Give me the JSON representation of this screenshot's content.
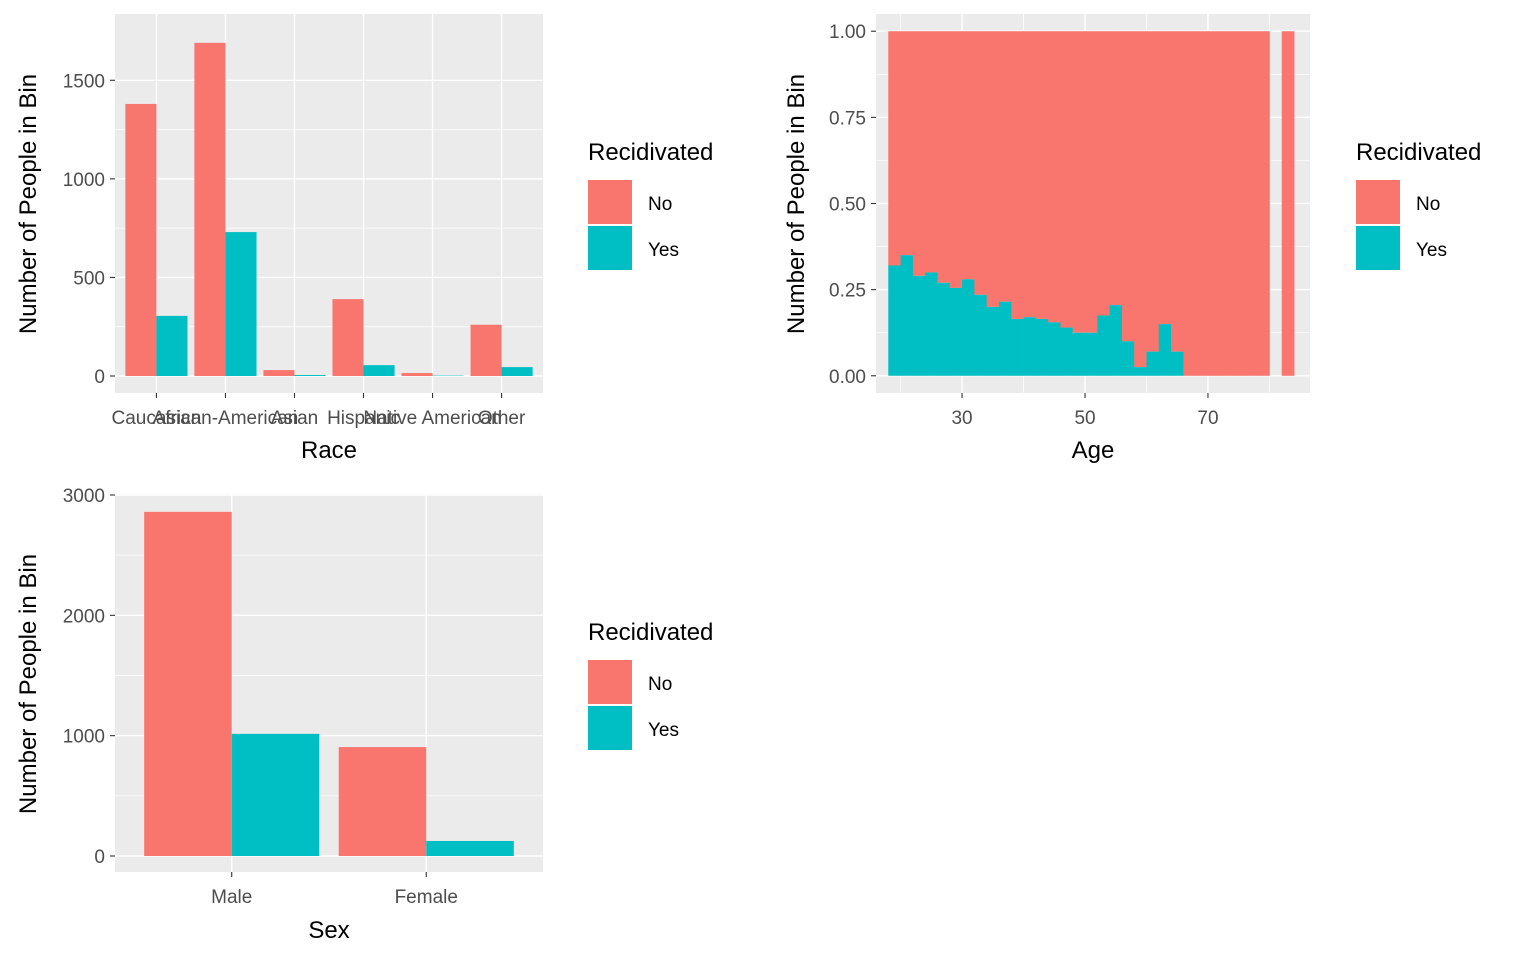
{
  "colors": {
    "no": "#F8766D",
    "yes": "#00BFC4",
    "panel": "#EBEBEB",
    "grid": "#FFFFFF"
  },
  "chart_data": [
    {
      "id": "race",
      "type": "bar",
      "position": "dodge",
      "xlabel": "Race",
      "ylabel": "Number of People in Bin",
      "categories": [
        "Caucasian",
        "African-American",
        "Asian",
        "Hispanic",
        "Native American",
        "Other"
      ],
      "series": [
        {
          "name": "No",
          "values": [
            1380,
            1690,
            30,
            390,
            15,
            260
          ]
        },
        {
          "name": "Yes",
          "values": [
            305,
            730,
            5,
            55,
            2,
            45
          ]
        }
      ],
      "ylim": [
        0,
        1750
      ],
      "yticks": [
        0,
        500,
        1000,
        1500
      ],
      "grid": true,
      "legend": {
        "title": "Recidivated",
        "placement": "right"
      }
    },
    {
      "id": "age",
      "type": "bar",
      "position": "fill",
      "xlabel": "Age",
      "ylabel": "Number of People in Bin",
      "bin_width": 2,
      "x_bins": [
        19,
        21,
        23,
        25,
        27,
        29,
        31,
        33,
        35,
        37,
        39,
        41,
        43,
        45,
        47,
        49,
        51,
        53,
        55,
        57,
        59,
        61,
        63,
        65,
        67,
        69,
        71,
        73,
        75,
        77,
        79,
        83
      ],
      "series": [
        {
          "name": "Yes",
          "values": [
            0.32,
            0.35,
            0.29,
            0.3,
            0.27,
            0.255,
            0.28,
            0.235,
            0.2,
            0.215,
            0.165,
            0.17,
            0.165,
            0.155,
            0.14,
            0.125,
            0.125,
            0.175,
            0.205,
            0.1,
            0.025,
            0.07,
            0.15,
            0.07,
            0,
            0,
            0,
            0,
            0,
            0,
            0,
            0
          ]
        },
        {
          "name": "No",
          "values": [
            0.68,
            0.65,
            0.71,
            0.7,
            0.73,
            0.745,
            0.72,
            0.765,
            0.8,
            0.785,
            0.835,
            0.83,
            0.835,
            0.845,
            0.86,
            0.875,
            0.875,
            0.825,
            0.795,
            0.9,
            0.975,
            0.93,
            0.85,
            0.93,
            1,
            1,
            1,
            1,
            1,
            1,
            1,
            1
          ]
        }
      ],
      "xlim": [
        16,
        86.6
      ],
      "xticks": [
        30,
        50,
        70
      ],
      "ylim": [
        -0.05,
        1.05
      ],
      "yticks": [
        0.0,
        0.25,
        0.5,
        0.75,
        1.0
      ],
      "ytick_labels": [
        "0.00",
        "0.25",
        "0.50",
        "0.75",
        "1.00"
      ],
      "grid": true,
      "legend": {
        "title": "Recidivated",
        "placement": "right"
      }
    },
    {
      "id": "sex",
      "type": "bar",
      "position": "dodge",
      "xlabel": "Sex",
      "ylabel": "Number of People in Bin",
      "categories": [
        "Male",
        "Female"
      ],
      "series": [
        {
          "name": "No",
          "values": [
            2860,
            905
          ]
        },
        {
          "name": "Yes",
          "values": [
            1015,
            125
          ]
        }
      ],
      "ylim": [
        0,
        3000
      ],
      "yticks": [
        0,
        1000,
        2000,
        3000
      ],
      "grid": true,
      "legend": {
        "title": "Recidivated",
        "placement": "right"
      }
    }
  ]
}
